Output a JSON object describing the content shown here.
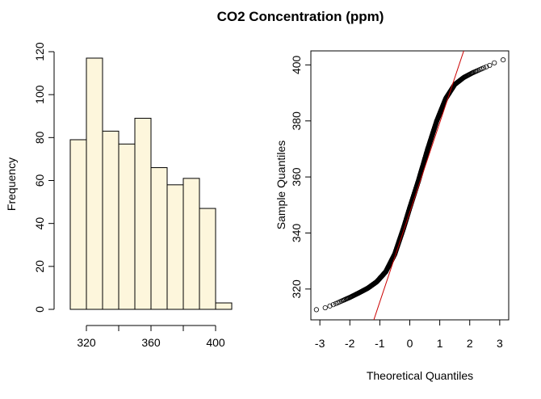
{
  "title": "CO2 Concentration (ppm)",
  "colors": {
    "bar_fill": "#fdf6dc",
    "outline": "#000000",
    "qq_line": "#cc0000"
  },
  "chart_data": [
    {
      "type": "bar",
      "subtype": "histogram",
      "bins": [
        {
          "x0": 310,
          "x1": 320,
          "count": 79
        },
        {
          "x0": 320,
          "x1": 330,
          "count": 117
        },
        {
          "x0": 330,
          "x1": 340,
          "count": 83
        },
        {
          "x0": 340,
          "x1": 350,
          "count": 77
        },
        {
          "x0": 350,
          "x1": 360,
          "count": 89
        },
        {
          "x0": 360,
          "x1": 370,
          "count": 66
        },
        {
          "x0": 370,
          "x1": 380,
          "count": 58
        },
        {
          "x0": 380,
          "x1": 390,
          "count": 61
        },
        {
          "x0": 390,
          "x1": 400,
          "count": 47
        },
        {
          "x0": 400,
          "x1": 410,
          "count": 3
        }
      ],
      "xlabel": "",
      "ylabel": "Frequency",
      "xlim": [
        310,
        410
      ],
      "ylim": [
        0,
        120
      ],
      "xticks": [
        "320",
        "360",
        "400"
      ],
      "xtick_values": [
        320,
        340,
        360,
        380,
        400
      ],
      "yticks": [
        "0",
        "20",
        "40",
        "60",
        "80",
        "100",
        "120"
      ]
    },
    {
      "type": "scatter",
      "subtype": "normal-qq",
      "n": 680,
      "xlabel": "Theoretical Quantiles",
      "ylabel": "Sample Quantiles",
      "xlim": [
        -3.3,
        3.3
      ],
      "ylim": [
        309,
        405
      ],
      "xticks": [
        "-3",
        "-2",
        "-1",
        "0",
        "1",
        "2",
        "3"
      ],
      "yticks": [
        "320",
        "340",
        "360",
        "380",
        "400"
      ],
      "quantile_curve": [
        [
          -3.19,
          312.5
        ],
        [
          -2.9,
          313.0
        ],
        [
          -2.6,
          314.2
        ],
        [
          -2.3,
          315.6
        ],
        [
          -2.0,
          317.0
        ],
        [
          -1.7,
          318.6
        ],
        [
          -1.4,
          320.3
        ],
        [
          -1.1,
          322.6
        ],
        [
          -0.8,
          326.2
        ],
        [
          -0.5,
          332.5
        ],
        [
          -0.2,
          342.0
        ],
        [
          0.0,
          349.0
        ],
        [
          0.3,
          359.0
        ],
        [
          0.6,
          370.0
        ],
        [
          0.9,
          380.0
        ],
        [
          1.2,
          388.0
        ],
        [
          1.5,
          393.0
        ],
        [
          1.8,
          395.5
        ],
        [
          2.1,
          397.2
        ],
        [
          2.4,
          398.6
        ],
        [
          2.7,
          400.0
        ],
        [
          2.9,
          401.2
        ],
        [
          3.19,
          402.0
        ]
      ],
      "qq_line": {
        "x": [
          -1.2,
          1.8
        ],
        "y": [
          309,
          405
        ]
      }
    }
  ]
}
